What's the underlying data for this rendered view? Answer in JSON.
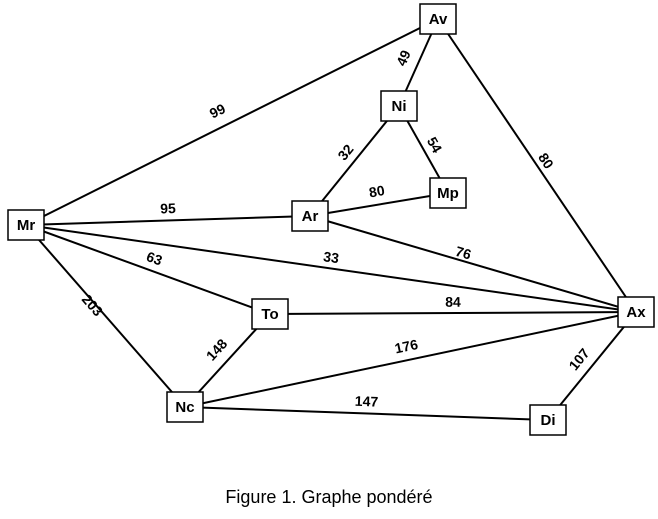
{
  "caption": "Figure 1. Graphe pondéré",
  "nodes": [
    {
      "id": "Av",
      "label": "Av"
    },
    {
      "id": "Ni",
      "label": "Ni"
    },
    {
      "id": "Mp",
      "label": "Mp"
    },
    {
      "id": "Ar",
      "label": "Ar"
    },
    {
      "id": "Mr",
      "label": "Mr"
    },
    {
      "id": "To",
      "label": "To"
    },
    {
      "id": "Ax",
      "label": "Ax"
    },
    {
      "id": "Nc",
      "label": "Nc"
    },
    {
      "id": "Di",
      "label": "Di"
    }
  ],
  "edges": [
    {
      "from": "Mr",
      "to": "Av",
      "weight": "99"
    },
    {
      "from": "Av",
      "to": "Ni",
      "weight": "49"
    },
    {
      "from": "Av",
      "to": "Ax",
      "weight": "80"
    },
    {
      "from": "Ni",
      "to": "Ar",
      "weight": "32"
    },
    {
      "from": "Ni",
      "to": "Mp",
      "weight": "54"
    },
    {
      "from": "Ar",
      "to": "Mp",
      "weight": "80"
    },
    {
      "from": "Mr",
      "to": "Ar",
      "weight": "95"
    },
    {
      "from": "Ar",
      "to": "Ax",
      "weight": "76"
    },
    {
      "from": "Mr",
      "to": "Ax",
      "weight": "33"
    },
    {
      "from": "Mr",
      "to": "To",
      "weight": "63"
    },
    {
      "from": "To",
      "to": "Ax",
      "weight": "84"
    },
    {
      "from": "Mr",
      "to": "Nc",
      "weight": "203"
    },
    {
      "from": "To",
      "to": "Nc",
      "weight": "148"
    },
    {
      "from": "Nc",
      "to": "Ax",
      "weight": "176"
    },
    {
      "from": "Nc",
      "to": "Di",
      "weight": "147"
    },
    {
      "from": "Di",
      "to": "Ax",
      "weight": "107"
    }
  ]
}
